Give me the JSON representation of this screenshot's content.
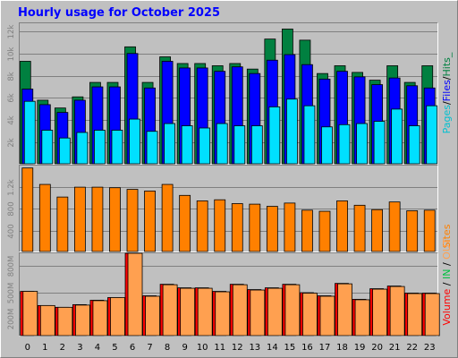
{
  "chart_data": [
    {
      "type": "bar",
      "title": "Hourly usage for October 2025",
      "categories": [
        "0",
        "1",
        "2",
        "3",
        "4",
        "5",
        "6",
        "7",
        "8",
        "9",
        "10",
        "11",
        "12",
        "13",
        "14",
        "15",
        "16",
        "17",
        "18",
        "19",
        "20",
        "21",
        "22",
        "23"
      ],
      "yticks": [
        "2k",
        "4k",
        "6k",
        "8k",
        "10k",
        "12k"
      ],
      "ylim": [
        0,
        12800
      ],
      "legend": [
        "Pages",
        "Files",
        "Hits"
      ],
      "legend_separator": "/",
      "legend_trailing": "_",
      "series": [
        {
          "name": "Hits",
          "color": "#008040",
          "values": [
            9300,
            5800,
            5100,
            6100,
            7400,
            7400,
            10600,
            7400,
            9700,
            9100,
            9100,
            8900,
            9100,
            8600,
            11300,
            12200,
            11200,
            8200,
            8900,
            8300,
            7600,
            8900,
            7400,
            8900
          ]
        },
        {
          "name": "Files",
          "color": "#0000ff",
          "values": [
            6800,
            5400,
            4700,
            5800,
            7000,
            7000,
            10000,
            6900,
            9300,
            8700,
            8700,
            8400,
            8800,
            8200,
            9400,
            9900,
            9000,
            7700,
            8400,
            7900,
            7200,
            7800,
            7100,
            6900
          ]
        },
        {
          "name": "Pages",
          "color": "#00e0ff",
          "values": [
            5700,
            3100,
            2400,
            2900,
            3100,
            3100,
            4100,
            3000,
            3700,
            3500,
            3300,
            3700,
            3500,
            3500,
            5200,
            5900,
            5300,
            3400,
            3600,
            3700,
            3900,
            5000,
            3500,
            5300
          ]
        }
      ]
    },
    {
      "type": "bar",
      "categories": [
        "0",
        "1",
        "2",
        "3",
        "4",
        "5",
        "6",
        "7",
        "8",
        "9",
        "10",
        "11",
        "12",
        "13",
        "14",
        "15",
        "16",
        "17",
        "18",
        "19",
        "20",
        "21",
        "22",
        "23"
      ],
      "yticks": [
        "400",
        "800",
        "1.2k"
      ],
      "ylim": [
        0,
        1600
      ],
      "legend": [
        "Sites"
      ],
      "series": [
        {
          "name": "Sites",
          "color": "#ff8000",
          "values": [
            1540,
            1240,
            1010,
            1190,
            1190,
            1180,
            1150,
            1120,
            1240,
            1040,
            940,
            960,
            890,
            880,
            840,
            900,
            770,
            750,
            940,
            860,
            780,
            920,
            760,
            770
          ]
        }
      ]
    },
    {
      "type": "bar",
      "categories": [
        "0",
        "1",
        "2",
        "3",
        "4",
        "5",
        "6",
        "7",
        "8",
        "9",
        "10",
        "11",
        "12",
        "13",
        "14",
        "15",
        "16",
        "17",
        "18",
        "19",
        "20",
        "21",
        "22",
        "23"
      ],
      "yticks": [
        "200M",
        "500M",
        "800M"
      ],
      "ylim": [
        0,
        950
      ],
      "legend": [
        "Volume",
        "IN",
        "OUT"
      ],
      "legend_separator": " / ",
      "series": [
        {
          "name": "Volume",
          "color": "#ff0000",
          "values": [
            510,
            350,
            330,
            360,
            410,
            440,
            940,
            460,
            590,
            550,
            550,
            510,
            590,
            530,
            550,
            590,
            495,
            460,
            600,
            420,
            540,
            570,
            490,
            490
          ]
        },
        {
          "name": "OUT",
          "color": "#ffa050",
          "values": [
            510,
            350,
            330,
            355,
            405,
            440,
            940,
            455,
            585,
            545,
            545,
            505,
            585,
            525,
            545,
            585,
            490,
            455,
            595,
            415,
            535,
            565,
            485,
            485
          ]
        }
      ]
    }
  ]
}
